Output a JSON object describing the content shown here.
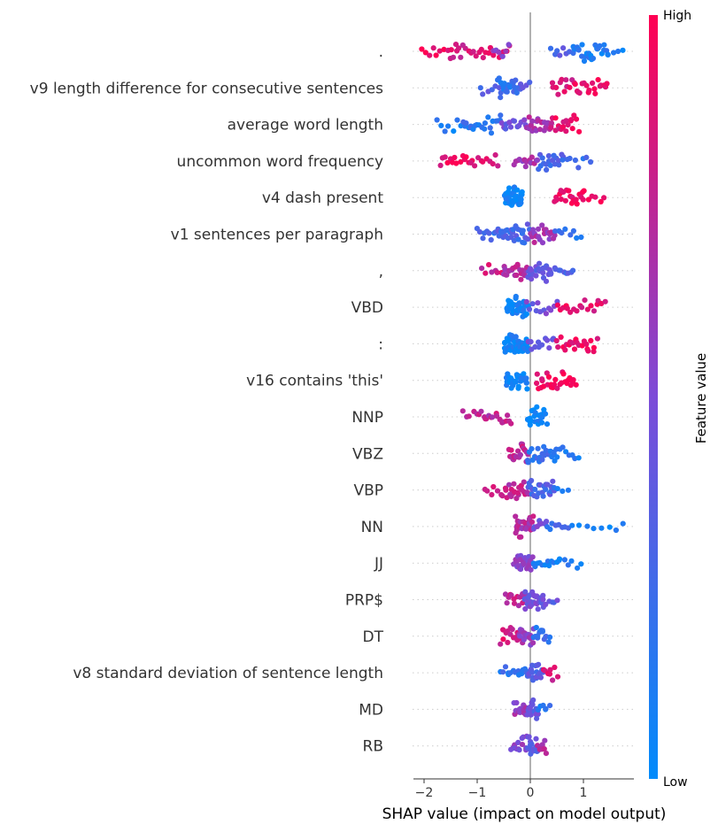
{
  "chart_data": {
    "type": "scatter",
    "subtype": "shap-beeswarm",
    "xlabel": "SHAP value (impact on model output)",
    "xlim": [
      -2.2,
      1.95
    ],
    "xticks": [
      -2,
      -1,
      0,
      1
    ],
    "xtick_labels": [
      "−2",
      "−1",
      "0",
      "1"
    ],
    "colorbar": {
      "title": "Feature value",
      "high_label": "High",
      "low_label": "Low",
      "high_color": "#ff0052",
      "low_color": "#008bfb"
    },
    "features": [
      {
        "label": ".",
        "clusters": [
          {
            "min": -2.05,
            "max": -1.4,
            "c": 0.92,
            "n": 10,
            "s": 0.5
          },
          {
            "min": -1.5,
            "max": -0.4,
            "c": 0.85,
            "n": 24,
            "s": 0.9
          },
          {
            "min": -0.7,
            "max": -0.4,
            "c": 0.55,
            "n": 6,
            "s": 0.7
          },
          {
            "min": 0.4,
            "max": 0.8,
            "c": 0.3,
            "n": 8,
            "s": 0.7
          },
          {
            "min": 0.8,
            "max": 1.45,
            "c": 0.1,
            "n": 26,
            "s": 1.0
          },
          {
            "min": 1.45,
            "max": 1.75,
            "c": 0.1,
            "n": 4,
            "s": 0.3
          }
        ]
      },
      {
        "label": "v9 length difference for consecutive sentences",
        "clusters": [
          {
            "min": -0.95,
            "max": -0.6,
            "c": 0.35,
            "n": 6,
            "s": 0.5
          },
          {
            "min": -0.6,
            "max": -0.2,
            "c": 0.2,
            "n": 26,
            "s": 1.0
          },
          {
            "min": -0.2,
            "max": 0.0,
            "c": 0.35,
            "n": 4,
            "s": 0.4
          },
          {
            "min": 0.4,
            "max": 0.9,
            "c": 0.88,
            "n": 14,
            "s": 0.7
          },
          {
            "min": 0.9,
            "max": 1.45,
            "c": 0.9,
            "n": 16,
            "s": 0.7
          }
        ]
      },
      {
        "label": "average word length",
        "clusters": [
          {
            "min": -1.75,
            "max": -1.25,
            "c": 0.12,
            "n": 8,
            "s": 0.5
          },
          {
            "min": -1.25,
            "max": -0.55,
            "c": 0.18,
            "n": 20,
            "s": 0.8
          },
          {
            "min": -0.55,
            "max": -0.05,
            "c": 0.45,
            "n": 14,
            "s": 0.7
          },
          {
            "min": -0.05,
            "max": 0.4,
            "c": 0.7,
            "n": 22,
            "s": 1.0
          },
          {
            "min": 0.4,
            "max": 0.9,
            "c": 0.9,
            "n": 18,
            "s": 0.9
          }
        ]
      },
      {
        "label": "uncommon word frequency",
        "clusters": [
          {
            "min": -1.7,
            "max": -1.1,
            "c": 0.92,
            "n": 14,
            "s": 0.7
          },
          {
            "min": -1.1,
            "max": -0.6,
            "c": 0.85,
            "n": 10,
            "s": 0.5
          },
          {
            "min": -0.3,
            "max": 0.15,
            "c": 0.65,
            "n": 14,
            "s": 0.7
          },
          {
            "min": 0.15,
            "max": 0.6,
            "c": 0.3,
            "n": 18,
            "s": 0.9
          },
          {
            "min": 0.6,
            "max": 1.15,
            "c": 0.25,
            "n": 8,
            "s": 0.5
          }
        ]
      },
      {
        "label": "v4 dash present",
        "clusters": [
          {
            "min": -0.48,
            "max": -0.15,
            "c": 0.05,
            "n": 44,
            "s": 1.0
          },
          {
            "min": 0.45,
            "max": 1.0,
            "c": 0.95,
            "n": 20,
            "s": 0.7
          },
          {
            "min": 1.0,
            "max": 1.4,
            "c": 0.95,
            "n": 6,
            "s": 0.5
          }
        ]
      },
      {
        "label": "v1 sentences per paragraph",
        "clusters": [
          {
            "min": -1.0,
            "max": -0.6,
            "c": 0.25,
            "n": 10,
            "s": 0.6
          },
          {
            "min": -0.6,
            "max": 0.0,
            "c": 0.3,
            "n": 30,
            "s": 1.0
          },
          {
            "min": 0.0,
            "max": 0.45,
            "c": 0.65,
            "n": 22,
            "s": 0.9
          },
          {
            "min": 0.45,
            "max": 0.95,
            "c": 0.2,
            "n": 8,
            "s": 0.5
          }
        ]
      },
      {
        "label": ",",
        "clusters": [
          {
            "min": -0.9,
            "max": -0.5,
            "c": 0.8,
            "n": 8,
            "s": 0.5
          },
          {
            "min": -0.5,
            "max": -0.05,
            "c": 0.7,
            "n": 22,
            "s": 0.9
          },
          {
            "min": -0.05,
            "max": 0.4,
            "c": 0.4,
            "n": 24,
            "s": 1.0
          },
          {
            "min": 0.4,
            "max": 0.8,
            "c": 0.3,
            "n": 10,
            "s": 0.6
          }
        ]
      },
      {
        "label": "VBD",
        "clusters": [
          {
            "min": -0.45,
            "max": -0.05,
            "c": 0.05,
            "n": 44,
            "s": 1.0
          },
          {
            "min": -0.05,
            "max": 0.5,
            "c": 0.45,
            "n": 12,
            "s": 0.5
          },
          {
            "min": 0.5,
            "max": 1.4,
            "c": 0.9,
            "n": 18,
            "s": 0.6
          }
        ]
      },
      {
        "label": ":",
        "clusters": [
          {
            "min": -0.5,
            "max": -0.05,
            "c": 0.05,
            "n": 44,
            "s": 1.0
          },
          {
            "min": -0.05,
            "max": 0.45,
            "c": 0.45,
            "n": 12,
            "s": 0.6
          },
          {
            "min": 0.5,
            "max": 1.25,
            "c": 0.92,
            "n": 22,
            "s": 0.8
          }
        ]
      },
      {
        "label": "v16 contains 'this'",
        "clusters": [
          {
            "min": -0.45,
            "max": -0.05,
            "c": 0.05,
            "n": 32,
            "s": 0.9
          },
          {
            "min": 0.1,
            "max": 0.85,
            "c": 0.95,
            "n": 28,
            "s": 0.9
          }
        ]
      },
      {
        "label": "NNP",
        "clusters": [
          {
            "min": -1.25,
            "max": -0.85,
            "c": 0.8,
            "n": 8,
            "s": 0.5
          },
          {
            "min": -0.85,
            "max": -0.35,
            "c": 0.75,
            "n": 14,
            "s": 0.8
          },
          {
            "min": -0.05,
            "max": 0.3,
            "c": 0.05,
            "n": 24,
            "s": 1.0
          }
        ]
      },
      {
        "label": "VBZ",
        "clusters": [
          {
            "min": -0.4,
            "max": -0.05,
            "c": 0.75,
            "n": 22,
            "s": 1.0
          },
          {
            "min": -0.05,
            "max": 0.5,
            "c": 0.2,
            "n": 24,
            "s": 1.0
          },
          {
            "min": 0.5,
            "max": 0.9,
            "c": 0.1,
            "n": 8,
            "s": 0.6
          }
        ]
      },
      {
        "label": "VBP",
        "clusters": [
          {
            "min": -0.85,
            "max": -0.45,
            "c": 0.85,
            "n": 8,
            "s": 0.5
          },
          {
            "min": -0.45,
            "max": -0.05,
            "c": 0.75,
            "n": 20,
            "s": 0.9
          },
          {
            "min": -0.05,
            "max": 0.45,
            "c": 0.3,
            "n": 24,
            "s": 1.0
          },
          {
            "min": 0.45,
            "max": 0.7,
            "c": 0.15,
            "n": 4,
            "s": 0.4
          }
        ]
      },
      {
        "label": "NN",
        "clusters": [
          {
            "min": -0.3,
            "max": 0.05,
            "c": 0.7,
            "n": 30,
            "s": 1.0
          },
          {
            "min": 0.05,
            "max": 0.3,
            "c": 0.45,
            "n": 8,
            "s": 0.6
          },
          {
            "min": 0.3,
            "max": 0.7,
            "c": 0.25,
            "n": 8,
            "s": 0.4
          },
          {
            "min": 0.8,
            "max": 1.75,
            "c": 0.05,
            "n": 8,
            "s": 0.1
          }
        ]
      },
      {
        "label": "JJ",
        "clusters": [
          {
            "min": -0.3,
            "max": 0.05,
            "c": 0.55,
            "n": 32,
            "s": 1.0
          },
          {
            "min": 0.05,
            "max": 0.55,
            "c": 0.1,
            "n": 12,
            "s": 0.4
          },
          {
            "min": 0.55,
            "max": 0.95,
            "c": 0.1,
            "n": 6,
            "s": 0.5
          }
        ]
      },
      {
        "label": "PRP$",
        "clusters": [
          {
            "min": -0.45,
            "max": -0.1,
            "c": 0.75,
            "n": 14,
            "s": 0.8
          },
          {
            "min": -0.1,
            "max": 0.25,
            "c": 0.45,
            "n": 30,
            "s": 1.0
          },
          {
            "min": 0.25,
            "max": 0.5,
            "c": 0.4,
            "n": 6,
            "s": 0.6
          }
        ]
      },
      {
        "label": "DT",
        "clusters": [
          {
            "min": -0.55,
            "max": -0.2,
            "c": 0.85,
            "n": 14,
            "s": 0.8
          },
          {
            "min": -0.2,
            "max": 0.05,
            "c": 0.6,
            "n": 20,
            "s": 1.0
          },
          {
            "min": 0.05,
            "max": 0.35,
            "c": 0.2,
            "n": 14,
            "s": 0.9
          }
        ]
      },
      {
        "label": "v8 standard deviation of sentence length",
        "clusters": [
          {
            "min": -0.55,
            "max": -0.05,
            "c": 0.2,
            "n": 14,
            "s": 0.5
          },
          {
            "min": -0.05,
            "max": 0.25,
            "c": 0.35,
            "n": 24,
            "s": 1.0
          },
          {
            "min": 0.25,
            "max": 0.5,
            "c": 0.85,
            "n": 8,
            "s": 0.6
          }
        ]
      },
      {
        "label": "MD",
        "clusters": [
          {
            "min": -0.3,
            "max": -0.05,
            "c": 0.6,
            "n": 18,
            "s": 1.0
          },
          {
            "min": -0.05,
            "max": 0.15,
            "c": 0.4,
            "n": 16,
            "s": 0.9
          },
          {
            "min": 0.15,
            "max": 0.35,
            "c": 0.15,
            "n": 6,
            "s": 0.6
          }
        ]
      },
      {
        "label": "RB",
        "clusters": [
          {
            "min": -0.35,
            "max": -0.05,
            "c": 0.55,
            "n": 14,
            "s": 0.8
          },
          {
            "min": -0.05,
            "max": 0.15,
            "c": 0.35,
            "n": 20,
            "s": 1.0
          },
          {
            "min": 0.15,
            "max": 0.3,
            "c": 0.7,
            "n": 8,
            "s": 0.7
          }
        ]
      }
    ]
  }
}
